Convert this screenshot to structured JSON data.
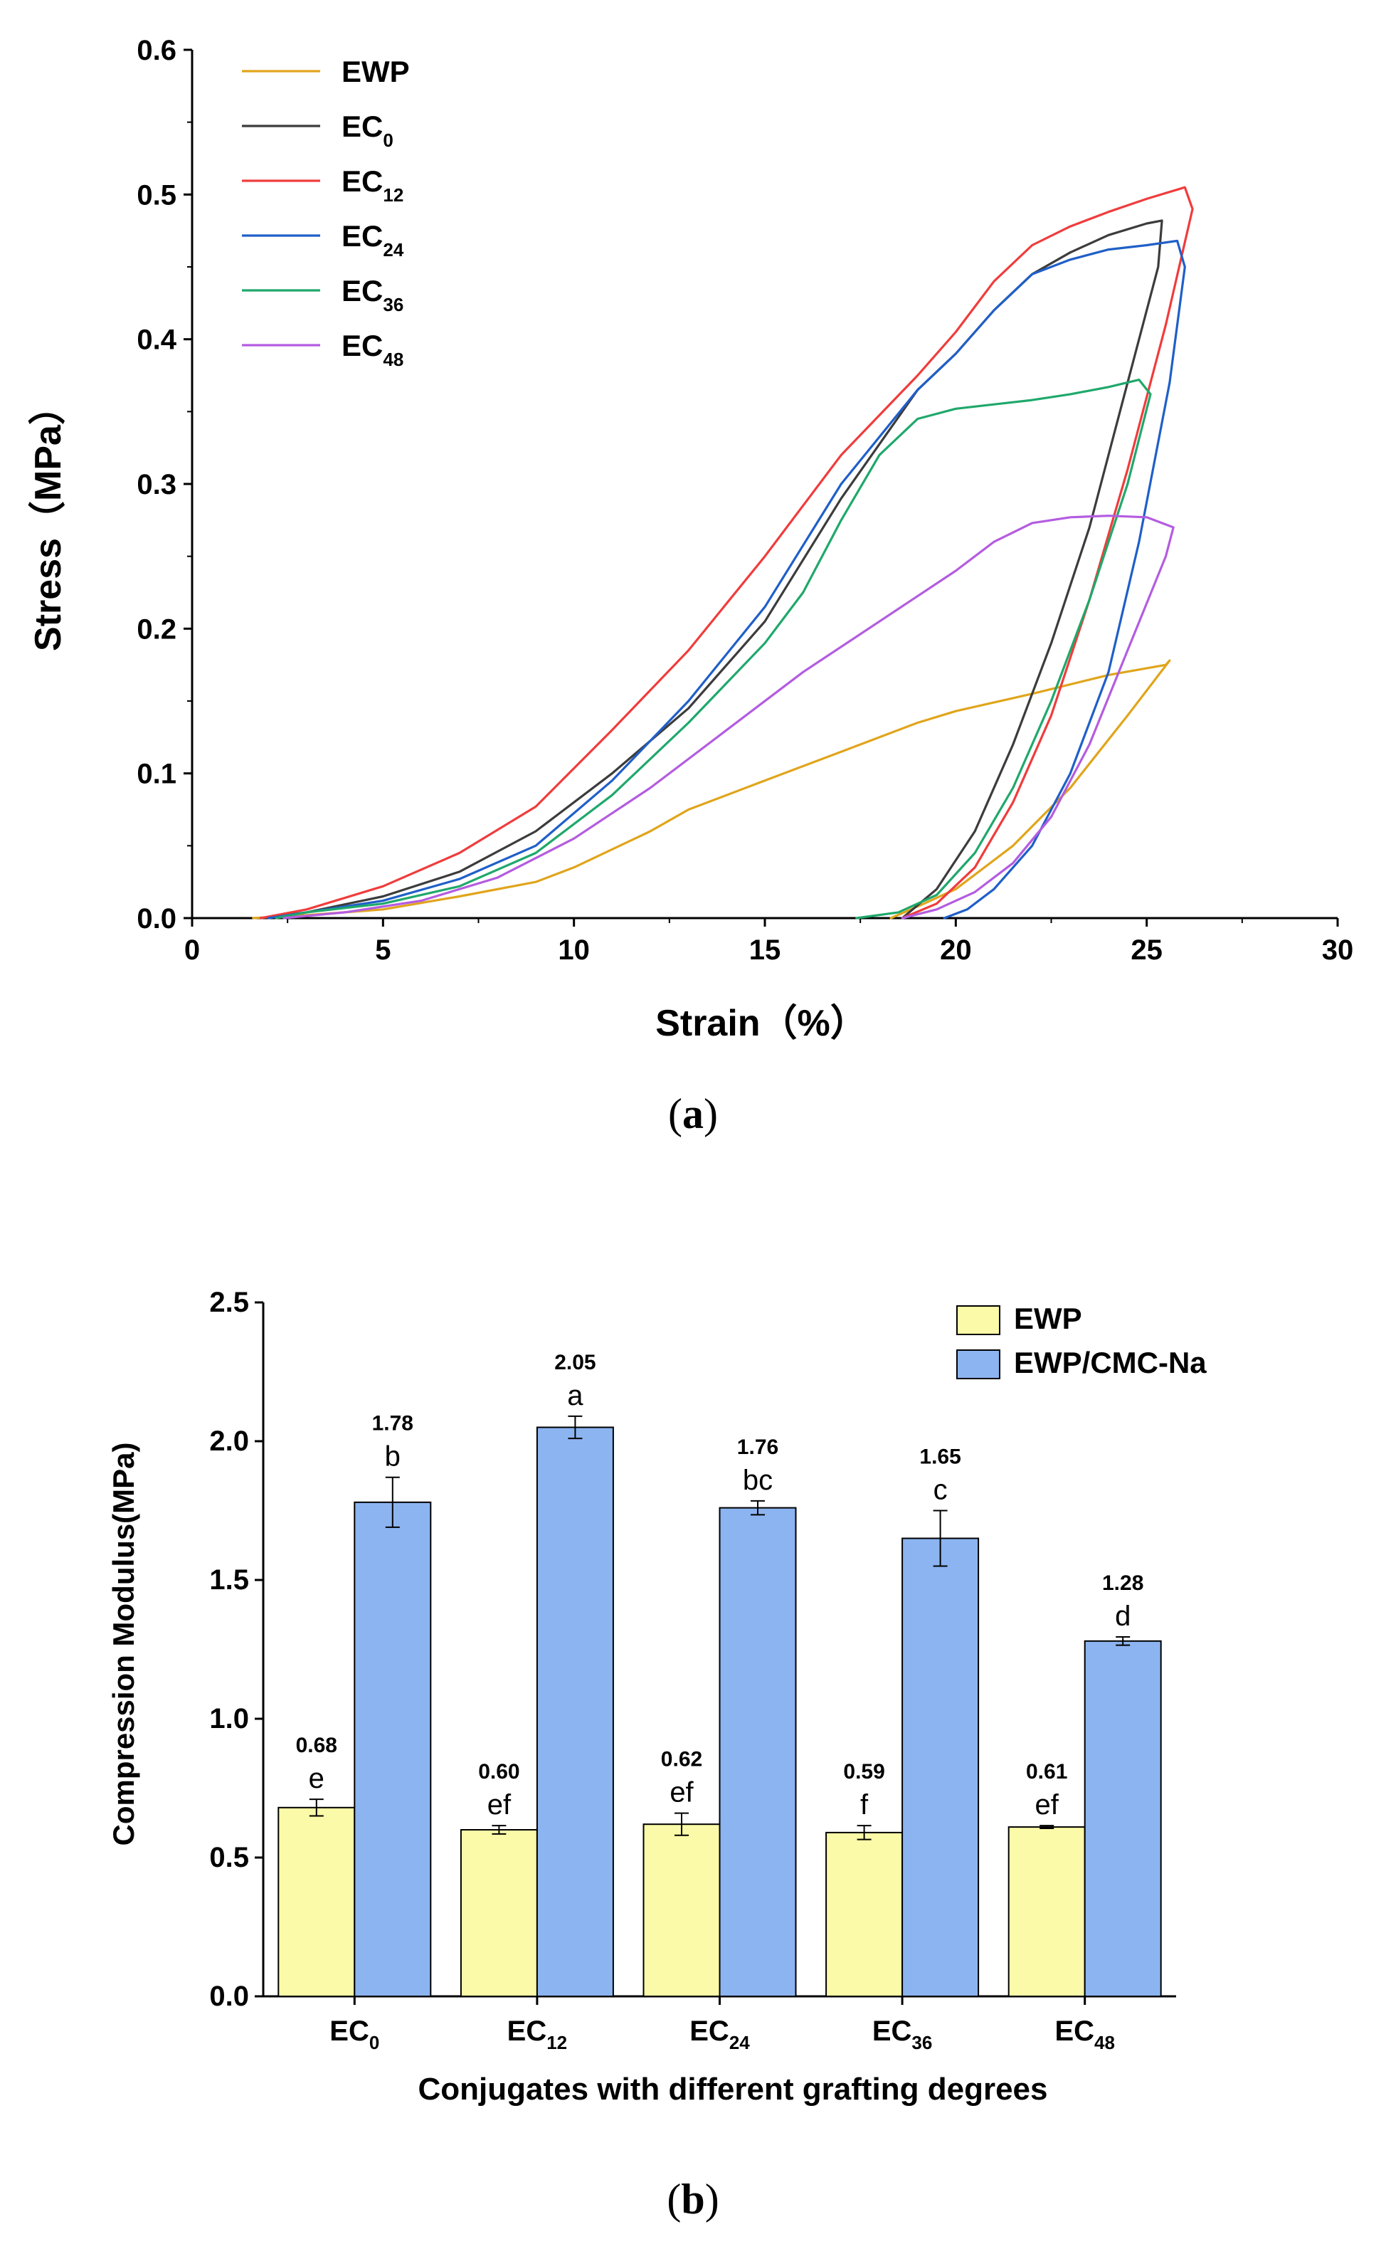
{
  "chart_data": [
    {
      "type": "line",
      "panel": "(a)",
      "panel_prefix": "(",
      "panel_letter": "a",
      "panel_suffix": ")",
      "xlabel": "Strain（%）",
      "ylabel": "Stress（MPa）",
      "xlim": [
        0,
        30
      ],
      "ylim": [
        0,
        0.6
      ],
      "xticks": [
        "0",
        "5",
        "10",
        "15",
        "20",
        "25",
        "30"
      ],
      "yticks": [
        "0.0",
        "0.1",
        "0.2",
        "0.3",
        "0.4",
        "0.5",
        "0.6"
      ],
      "legend_position": "top-left",
      "series": [
        {
          "name": "EWP",
          "base": "EWP",
          "subscript": "",
          "color": "#E0A51C",
          "x": [
            1.6,
            3,
            5,
            7,
            9,
            10,
            12,
            13,
            15,
            17,
            19,
            20,
            22,
            24,
            25.5,
            25.6,
            24.5,
            23,
            21.5,
            20,
            19,
            18.3
          ],
          "y": [
            0,
            0.002,
            0.006,
            0.015,
            0.025,
            0.035,
            0.06,
            0.075,
            0.095,
            0.115,
            0.135,
            0.143,
            0.155,
            0.168,
            0.175,
            0.178,
            0.14,
            0.09,
            0.05,
            0.02,
            0.008,
            0
          ]
        },
        {
          "name": "EC0",
          "base": "EC",
          "subscript": "0",
          "color": "#3C3C3C",
          "x": [
            1.8,
            3,
            5,
            7,
            9,
            11,
            13,
            15,
            17,
            19,
            20,
            21,
            22,
            23,
            24,
            25,
            25.4,
            25.3,
            24.5,
            23.5,
            22.5,
            21.5,
            20.5,
            19.5,
            18.6
          ],
          "y": [
            0,
            0.004,
            0.015,
            0.032,
            0.06,
            0.1,
            0.145,
            0.205,
            0.29,
            0.365,
            0.39,
            0.42,
            0.445,
            0.46,
            0.472,
            0.48,
            0.482,
            0.45,
            0.37,
            0.27,
            0.19,
            0.12,
            0.06,
            0.02,
            0
          ]
        },
        {
          "name": "EC12",
          "base": "EC",
          "subscript": "12",
          "color": "#F03C3C",
          "x": [
            1.8,
            3,
            5,
            7,
            9,
            11,
            13,
            15,
            17,
            19,
            20,
            21,
            22,
            23,
            24,
            25,
            26,
            26.2,
            25.5,
            24.5,
            23.5,
            22.5,
            21.5,
            20.5,
            19.5,
            18.6
          ],
          "y": [
            0,
            0.006,
            0.022,
            0.045,
            0.077,
            0.13,
            0.185,
            0.25,
            0.32,
            0.375,
            0.405,
            0.44,
            0.465,
            0.478,
            0.488,
            0.497,
            0.505,
            0.49,
            0.41,
            0.31,
            0.22,
            0.14,
            0.08,
            0.035,
            0.01,
            0
          ]
        },
        {
          "name": "EC24",
          "base": "EC",
          "subscript": "24",
          "color": "#1F5FC8",
          "x": [
            2.0,
            3,
            5,
            7,
            9,
            11,
            13,
            15,
            17,
            19,
            20,
            21,
            22,
            23,
            24,
            25,
            25.8,
            26,
            25.6,
            24.8,
            24,
            23,
            22,
            21,
            20.3,
            19.7
          ],
          "y": [
            0,
            0.004,
            0.012,
            0.027,
            0.05,
            0.095,
            0.15,
            0.215,
            0.3,
            0.365,
            0.39,
            0.42,
            0.445,
            0.455,
            0.462,
            0.465,
            0.468,
            0.45,
            0.37,
            0.26,
            0.17,
            0.1,
            0.05,
            0.02,
            0.006,
            0
          ]
        },
        {
          "name": "EC36",
          "base": "EC",
          "subscript": "36",
          "color": "#1FA86B",
          "x": [
            2.2,
            3,
            5,
            7,
            9,
            11,
            13,
            15,
            16,
            17,
            18,
            19,
            20,
            21,
            22,
            23,
            24,
            24.8,
            25.1,
            24.5,
            23.5,
            22.5,
            21.5,
            20.5,
            19.5,
            18.5,
            17.4
          ],
          "y": [
            0,
            0.004,
            0.01,
            0.022,
            0.045,
            0.085,
            0.135,
            0.19,
            0.225,
            0.275,
            0.32,
            0.345,
            0.352,
            0.355,
            0.358,
            0.362,
            0.367,
            0.372,
            0.362,
            0.3,
            0.22,
            0.15,
            0.09,
            0.045,
            0.016,
            0.004,
            0
          ]
        },
        {
          "name": "EC48",
          "base": "EC",
          "subscript": "48",
          "color": "#B45CE0",
          "x": [
            2.4,
            4,
            6,
            8,
            10,
            12,
            14,
            16,
            18,
            20,
            21,
            22,
            23,
            24,
            25,
            25.7,
            25.5,
            24.5,
            23.5,
            22.5,
            21.5,
            20.5,
            19.5,
            18.6
          ],
          "y": [
            0,
            0.004,
            0.012,
            0.028,
            0.055,
            0.09,
            0.13,
            0.17,
            0.205,
            0.24,
            0.26,
            0.273,
            0.277,
            0.278,
            0.277,
            0.27,
            0.25,
            0.185,
            0.12,
            0.07,
            0.038,
            0.018,
            0.006,
            0
          ]
        }
      ]
    },
    {
      "type": "bar",
      "panel": "(b)",
      "panel_prefix": "(",
      "panel_letter": "b",
      "panel_suffix": ")",
      "xlabel": "Conjugates with different grafting degrees",
      "ylabel": "Compression Modulus(MPa)",
      "ylim": [
        0,
        2.5
      ],
      "yticks": [
        "0.0",
        "0.5",
        "1.0",
        "1.5",
        "2.0",
        "2.5"
      ],
      "legend_position": "top-right",
      "categories": [
        {
          "name": "EC0",
          "base": "EC",
          "subscript": "0"
        },
        {
          "name": "EC12",
          "base": "EC",
          "subscript": "12"
        },
        {
          "name": "EC24",
          "base": "EC",
          "subscript": "24"
        },
        {
          "name": "EC36",
          "base": "EC",
          "subscript": "36"
        },
        {
          "name": "EC48",
          "base": "EC",
          "subscript": "48"
        }
      ],
      "series": [
        {
          "name": "EWP",
          "color": "#FAFAA8",
          "values": [
            0.68,
            0.6,
            0.62,
            0.59,
            0.61
          ],
          "value_labels": [
            "0.68",
            "0.60",
            "0.62",
            "0.59",
            "0.61"
          ],
          "errors": [
            0.03,
            0.015,
            0.04,
            0.025,
            0.005
          ],
          "letters": [
            "e",
            "ef",
            "ef",
            "f",
            "ef"
          ]
        },
        {
          "name": "EWP/CMC-Na",
          "color": "#8CB4F0",
          "values": [
            1.78,
            2.05,
            1.76,
            1.65,
            1.28
          ],
          "value_labels": [
            "1.78",
            "2.05",
            "1.76",
            "1.65",
            "1.28"
          ],
          "errors": [
            0.09,
            0.04,
            0.025,
            0.1,
            0.015
          ],
          "letters": [
            "b",
            "a",
            "bc",
            "c",
            "d"
          ]
        }
      ]
    }
  ]
}
